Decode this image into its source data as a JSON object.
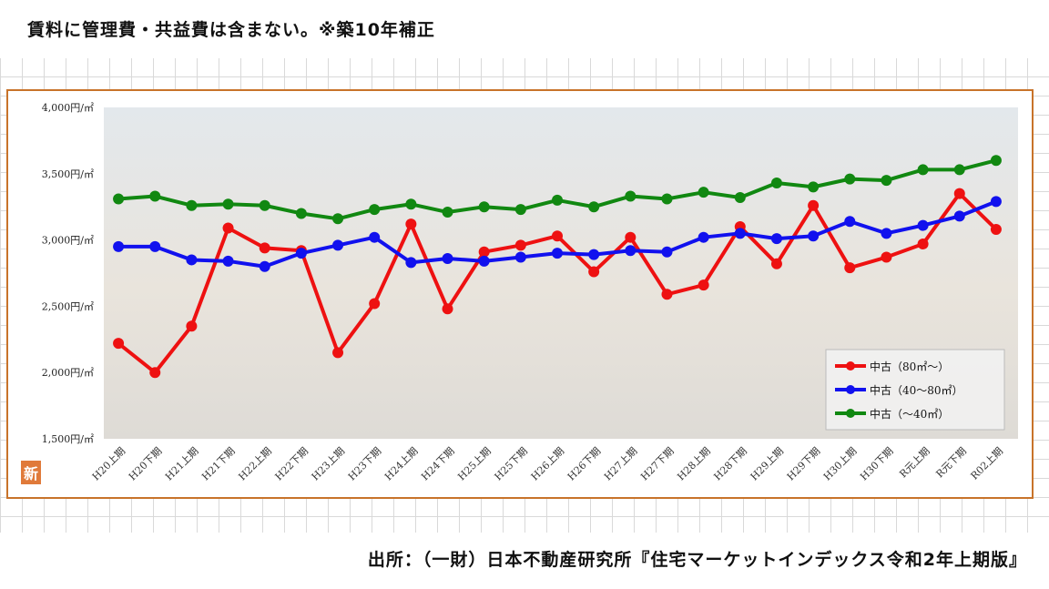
{
  "header_note": "賃料に管理費・共益費は含まない。※築10年補正",
  "source_note": "出所：（一財）日本不動産研究所『住宅マーケットインデックス令和2年上期版』",
  "badge_text": "新",
  "chart_data": {
    "type": "line",
    "ylim": [
      1500,
      4000
    ],
    "yticks": [
      4000,
      3500,
      3000,
      2500,
      2000,
      1500
    ],
    "ytick_labels": [
      "4,000円/㎡",
      "3,500円/㎡",
      "3,000円/㎡",
      "2,500円/㎡",
      "2,000円/㎡",
      "1,500円/㎡"
    ],
    "categories": [
      "H20上期",
      "H20下期",
      "H21上期",
      "H21下期",
      "H22上期",
      "H22下期",
      "H23上期",
      "H23下期",
      "H24上期",
      "H24下期",
      "H25上期",
      "H25下期",
      "H26上期",
      "H26下期",
      "H27上期",
      "H27下期",
      "H28上期",
      "H28下期",
      "H29上期",
      "H29下期",
      "H30上期",
      "H30下期",
      "R元上期",
      "R元下期",
      "R02上期"
    ],
    "legend_position": "bottom-right",
    "series": [
      {
        "name": "中古（80㎡～）",
        "color": "#ee1111",
        "values": [
          2220,
          2000,
          2350,
          3090,
          2940,
          2920,
          2150,
          2520,
          3120,
          2480,
          2910,
          2960,
          3030,
          2760,
          3020,
          2590,
          2660,
          3100,
          2820,
          3260,
          2790,
          2870,
          2970,
          3350,
          3080
        ]
      },
      {
        "name": "中古（40～80㎡）",
        "color": "#1111ee",
        "values": [
          2950,
          2950,
          2850,
          2840,
          2800,
          2900,
          2960,
          3020,
          2830,
          2860,
          2840,
          2870,
          2900,
          2890,
          2920,
          2910,
          3020,
          3050,
          3010,
          3030,
          3140,
          3050,
          3110,
          3180,
          3290
        ]
      },
      {
        "name": "中古（～40㎡）",
        "color": "#118811",
        "values": [
          3310,
          3330,
          3260,
          3270,
          3260,
          3200,
          3160,
          3230,
          3270,
          3210,
          3250,
          3230,
          3300,
          3250,
          3330,
          3310,
          3360,
          3320,
          3430,
          3400,
          3460,
          3450,
          3530,
          3530,
          3600
        ]
      }
    ]
  }
}
